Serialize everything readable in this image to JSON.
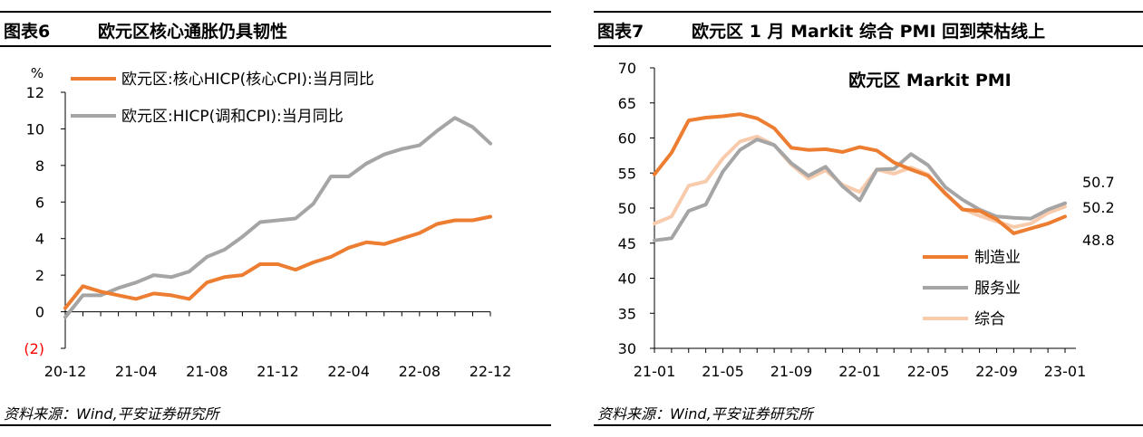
{
  "source_note": "资料来源：Wind,平安证券研究所",
  "chart_data": [
    {
      "type": "line",
      "figure_no": "图表6",
      "title": "欧元区核心通胀仍具韧性",
      "unit_label": "%",
      "y_ticks": [
        "12",
        "10",
        "8",
        "6",
        "4",
        "2",
        "0",
        "(2)"
      ],
      "ylim": [
        -2,
        12
      ],
      "x_tick_labels": [
        "20-12",
        "21-04",
        "21-08",
        "21-12",
        "22-04",
        "22-08",
        "22-12"
      ],
      "x": [
        "20-12",
        "21-01",
        "21-02",
        "21-03",
        "21-04",
        "21-05",
        "21-06",
        "21-07",
        "21-08",
        "21-09",
        "21-10",
        "21-11",
        "21-12",
        "22-01",
        "22-02",
        "22-03",
        "22-04",
        "22-05",
        "22-06",
        "22-07",
        "22-08",
        "22-09",
        "22-10",
        "22-11",
        "22-12"
      ],
      "legend_position": "top-left",
      "series": [
        {
          "name": "欧元区:核心HICP(核心CPI):当月同比",
          "color": "#ed7d31",
          "values": [
            0.2,
            1.4,
            1.1,
            0.9,
            0.7,
            1.0,
            0.9,
            0.7,
            1.6,
            1.9,
            2.0,
            2.6,
            2.6,
            2.3,
            2.7,
            3.0,
            3.5,
            3.8,
            3.7,
            4.0,
            4.3,
            4.8,
            5.0,
            5.0,
            5.2
          ]
        },
        {
          "name": "欧元区:HICP(调和CPI):当月同比",
          "color": "#a5a5a5",
          "values": [
            -0.3,
            0.9,
            0.9,
            1.3,
            1.6,
            2.0,
            1.9,
            2.2,
            3.0,
            3.4,
            4.1,
            4.9,
            5.0,
            5.1,
            5.9,
            7.4,
            7.4,
            8.1,
            8.6,
            8.9,
            9.1,
            9.9,
            10.6,
            10.1,
            9.2
          ]
        }
      ]
    },
    {
      "type": "line",
      "figure_no": "图表7",
      "title": "欧元区 1 月 Markit 综合 PMI 回到荣枯线上",
      "inner_title": "欧元区 Markit PMI",
      "y_ticks": [
        "70",
        "65",
        "60",
        "55",
        "50",
        "45",
        "40",
        "35",
        "30"
      ],
      "ylim": [
        30,
        70
      ],
      "x_tick_labels": [
        "21-01",
        "21-05",
        "21-09",
        "22-01",
        "22-05",
        "22-09",
        "23-01"
      ],
      "x": [
        "21-01",
        "21-02",
        "21-03",
        "21-04",
        "21-05",
        "21-06",
        "21-07",
        "21-08",
        "21-09",
        "21-10",
        "21-11",
        "21-12",
        "22-01",
        "22-02",
        "22-03",
        "22-04",
        "22-05",
        "22-06",
        "22-07",
        "22-08",
        "22-09",
        "22-10",
        "22-11",
        "22-12",
        "23-01"
      ],
      "legend_position": "bottom-center",
      "end_labels": [
        "50.7",
        "50.2",
        "48.8"
      ],
      "series": [
        {
          "name": "制造业",
          "color": "#ed7d31",
          "values": [
            54.8,
            57.9,
            62.5,
            62.9,
            63.1,
            63.4,
            62.8,
            61.4,
            58.6,
            58.3,
            58.4,
            58.0,
            58.7,
            58.2,
            56.5,
            55.5,
            54.6,
            52.1,
            49.8,
            49.6,
            48.4,
            46.4,
            47.1,
            47.8,
            48.8
          ]
        },
        {
          "name": "服务业",
          "color": "#a5a5a5",
          "values": [
            45.4,
            45.7,
            49.6,
            50.5,
            55.2,
            58.3,
            59.8,
            59.0,
            56.4,
            54.6,
            55.9,
            53.1,
            51.1,
            55.5,
            55.6,
            57.7,
            56.1,
            53.0,
            51.2,
            49.8,
            48.8,
            48.6,
            48.5,
            49.8,
            50.7
          ]
        },
        {
          "name": "综合",
          "color": "#f8cbad",
          "values": [
            47.8,
            48.8,
            53.2,
            53.8,
            57.1,
            59.5,
            60.2,
            59.0,
            56.2,
            54.2,
            55.4,
            53.3,
            52.3,
            55.5,
            54.9,
            55.8,
            54.8,
            52.0,
            49.9,
            48.9,
            48.1,
            47.3,
            47.8,
            49.3,
            50.2
          ]
        }
      ]
    }
  ]
}
